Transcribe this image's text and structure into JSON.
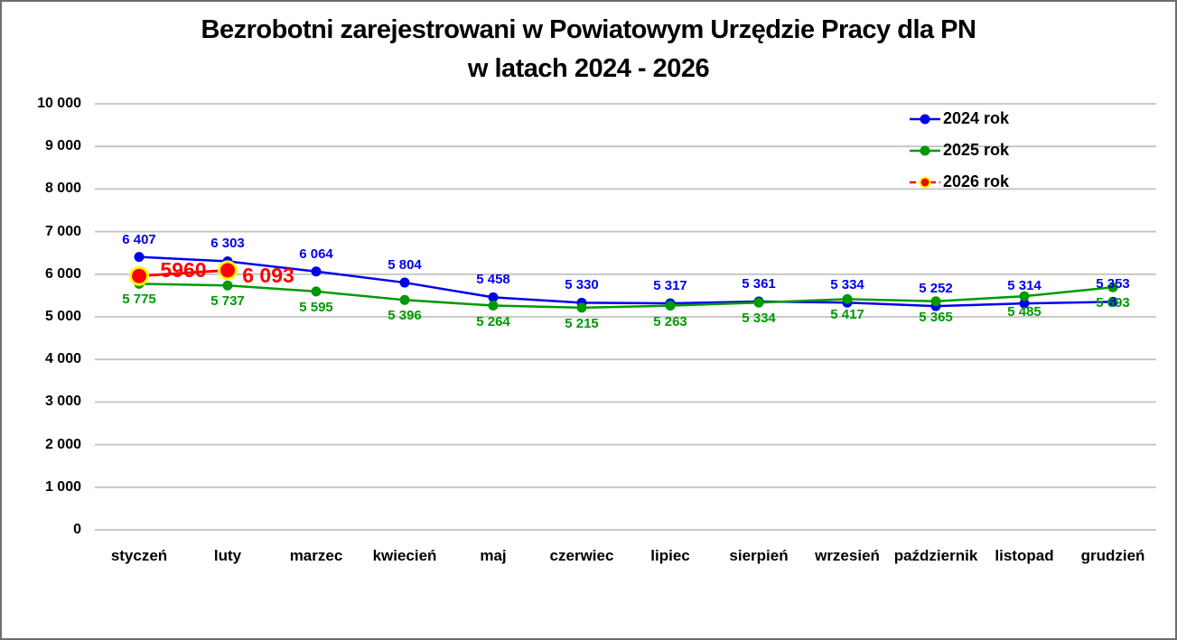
{
  "chart_data": {
    "type": "line",
    "title": "Bezrobotni zarejestrowani w Powiatowym Urzędzie Pracy dla PN w latach 2024 - 2026",
    "title_lines": [
      "Bezrobotni zarejestrowani w Powiatowym Urzędzie Pracy dla PN",
      "w latach 2024 - 2026"
    ],
    "categories": [
      "styczeń",
      "luty",
      "marzec",
      "kwiecień",
      "maj",
      "czerwiec",
      "lipiec",
      "sierpień",
      "wrzesień",
      "październik",
      "listopad",
      "grudzień"
    ],
    "series": [
      {
        "name": "2024 rok",
        "color": "#0000f0",
        "line_width": 2.5,
        "marker_radius": 5.5,
        "label_position": "above",
        "values": [
          6407,
          6303,
          6064,
          5804,
          5458,
          5330,
          5317,
          5361,
          5334,
          5252,
          5314,
          5353
        ],
        "labels": [
          "6 407",
          "6 303",
          "6 064",
          "5 804",
          "5 458",
          "5 330",
          "5 317",
          "5 361",
          "5 334",
          "5 252",
          "5 314",
          "5 353"
        ]
      },
      {
        "name": "2025 rok",
        "color": "#009a00",
        "line_width": 2.5,
        "marker_radius": 5.5,
        "label_position": "below",
        "values": [
          5775,
          5737,
          5595,
          5396,
          5264,
          5215,
          5263,
          5334,
          5417,
          5365,
          5485,
          5693
        ],
        "labels": [
          "5 775",
          "5 737",
          "5 595",
          "5 396",
          "5 264",
          "5 215",
          "5 263",
          "5 334",
          "5 417",
          "5 365",
          "5 485",
          "5 693"
        ]
      },
      {
        "name": "2026 rok",
        "color": "#ff0000",
        "marker_ring": "#ffff00",
        "line_width": 3,
        "marker_radius": 9.5,
        "label_position": "custom",
        "label_size": "large",
        "legend_dash": true,
        "values": [
          5960,
          6093,
          null,
          null,
          null,
          null,
          null,
          null,
          null,
          null,
          null,
          null
        ],
        "labels": [
          "5960",
          "6 093",
          null,
          null,
          null,
          null,
          null,
          null,
          null,
          null,
          null,
          null
        ],
        "label_offsets": [
          [
            49,
            -7
          ],
          [
            45,
            6
          ]
        ]
      }
    ],
    "ylim": [
      0,
      10000
    ],
    "ytick_step": 1000,
    "ytick_labels": [
      "0",
      "1 000",
      "2 000",
      "3 000",
      "4 000",
      "5 000",
      "6 000",
      "7 000",
      "8 000",
      "9 000",
      "10 000"
    ],
    "grid": "horizontal",
    "grid_color": "#c3c3c3",
    "legend_position": "top-right"
  }
}
